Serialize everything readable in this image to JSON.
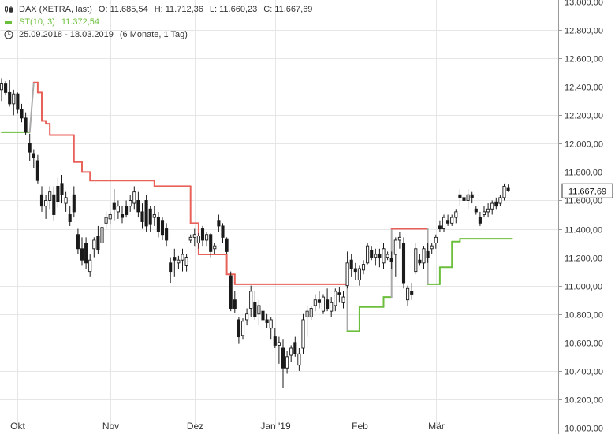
{
  "legend": {
    "instrument": "DAX (XETRA, last)",
    "open": "O: 11.685,54",
    "high": "H: 11.712,36",
    "low": "L: 11.660,23",
    "close": "C: 11.667,69",
    "indicator_label": "ST(10, 3)",
    "indicator_value": "11.372,54",
    "date_range": "25.09.2018 - 18.03.2019",
    "period": "(6 Monate, 1 Tag)"
  },
  "icons": {
    "candles": "candlestick-icon",
    "indicator": "line-swatch-icon",
    "period": "clock-icon"
  },
  "colors": {
    "candle": "#1a1a1a",
    "supertrend_up": "#6cbf3c",
    "supertrend_down": "#e8625a",
    "supertrend_switch": "#aaaaaa",
    "grid": "#e6e6e6",
    "last_price_box": "#ffffff"
  },
  "chart_data": {
    "type": "candlestick",
    "ylim": [
      10000,
      13000
    ],
    "y_ticks": [
      "13.000,00",
      "12.800,00",
      "12.600,00",
      "12.400,00",
      "12.200,00",
      "12.000,00",
      "11.800,00",
      "11.600,00",
      "11.400,00",
      "11.200,00",
      "11.000,00",
      "10.800,00",
      "10.600,00",
      "10.400,00",
      "10.200,00",
      "10.000,00"
    ],
    "y_tick_values": [
      13000,
      12800,
      12600,
      12400,
      12200,
      12000,
      11800,
      11600,
      11400,
      11200,
      11000,
      10800,
      10600,
      10400,
      10200,
      10000
    ],
    "x_ticks": [
      {
        "label": "Okt",
        "index": 4
      },
      {
        "label": "Nov",
        "index": 27
      },
      {
        "label": "Dez",
        "index": 48
      },
      {
        "label": "Jan '19",
        "index": 68
      },
      {
        "label": "Feb",
        "index": 89
      },
      {
        "label": "Mär",
        "index": 108
      }
    ],
    "last_price": 11667.69,
    "last_price_label": "11.667,69",
    "candles": [
      {
        "o": 12380,
        "h": 12460,
        "l": 12300,
        "c": 12420
      },
      {
        "o": 12420,
        "h": 12440,
        "l": 12340,
        "c": 12360
      },
      {
        "o": 12360,
        "h": 12450,
        "l": 12260,
        "c": 12280
      },
      {
        "o": 12280,
        "h": 12380,
        "l": 12200,
        "c": 12350
      },
      {
        "o": 12350,
        "h": 12360,
        "l": 12210,
        "c": 12240
      },
      {
        "o": 12240,
        "h": 12280,
        "l": 12150,
        "c": 12180
      },
      {
        "o": 12180,
        "h": 12220,
        "l": 12060,
        "c": 12080
      },
      {
        "o": 12000,
        "h": 12070,
        "l": 11880,
        "c": 11940
      },
      {
        "o": 11930,
        "h": 11960,
        "l": 11830,
        "c": 11900
      },
      {
        "o": 11880,
        "h": 11920,
        "l": 11720,
        "c": 11740
      },
      {
        "o": 11640,
        "h": 11700,
        "l": 11520,
        "c": 11560
      },
      {
        "o": 11560,
        "h": 11640,
        "l": 11470,
        "c": 11600
      },
      {
        "o": 11600,
        "h": 11700,
        "l": 11540,
        "c": 11660
      },
      {
        "o": 11640,
        "h": 11700,
        "l": 11460,
        "c": 11500
      },
      {
        "o": 11700,
        "h": 11760,
        "l": 11550,
        "c": 11590
      },
      {
        "o": 11720,
        "h": 11780,
        "l": 11580,
        "c": 11640
      },
      {
        "o": 11580,
        "h": 11660,
        "l": 11520,
        "c": 11620
      },
      {
        "o": 11500,
        "h": 11560,
        "l": 11420,
        "c": 11450
      },
      {
        "o": 11640,
        "h": 11700,
        "l": 11480,
        "c": 11520
      },
      {
        "o": 11360,
        "h": 11400,
        "l": 11220,
        "c": 11260
      },
      {
        "o": 11260,
        "h": 11340,
        "l": 11140,
        "c": 11180
      },
      {
        "o": 11300,
        "h": 11340,
        "l": 11120,
        "c": 11160
      },
      {
        "o": 11100,
        "h": 11220,
        "l": 11060,
        "c": 11180
      },
      {
        "o": 11260,
        "h": 11340,
        "l": 11200,
        "c": 11320
      },
      {
        "o": 11350,
        "h": 11420,
        "l": 11220,
        "c": 11250
      },
      {
        "o": 11300,
        "h": 11440,
        "l": 11260,
        "c": 11410
      },
      {
        "o": 11440,
        "h": 11520,
        "l": 11400,
        "c": 11480
      },
      {
        "o": 11470,
        "h": 11520,
        "l": 11430,
        "c": 11500
      },
      {
        "o": 11580,
        "h": 11680,
        "l": 11460,
        "c": 11540
      },
      {
        "o": 11520,
        "h": 11600,
        "l": 11470,
        "c": 11560
      },
      {
        "o": 11500,
        "h": 11560,
        "l": 11440,
        "c": 11480
      },
      {
        "o": 11560,
        "h": 11600,
        "l": 11480,
        "c": 11500
      },
      {
        "o": 11560,
        "h": 11640,
        "l": 11520,
        "c": 11600
      },
      {
        "o": 11580,
        "h": 11700,
        "l": 11540,
        "c": 11660
      },
      {
        "o": 11600,
        "h": 11660,
        "l": 11480,
        "c": 11520
      },
      {
        "o": 11520,
        "h": 11580,
        "l": 11400,
        "c": 11450
      },
      {
        "o": 11600,
        "h": 11640,
        "l": 11380,
        "c": 11420
      },
      {
        "o": 11540,
        "h": 11560,
        "l": 11380,
        "c": 11430
      },
      {
        "o": 11480,
        "h": 11560,
        "l": 11420,
        "c": 11500
      },
      {
        "o": 11480,
        "h": 11520,
        "l": 11340,
        "c": 11380
      },
      {
        "o": 11460,
        "h": 11480,
        "l": 11320,
        "c": 11360
      },
      {
        "o": 11400,
        "h": 11440,
        "l": 11280,
        "c": 11320
      },
      {
        "o": 11160,
        "h": 11200,
        "l": 11020,
        "c": 11100
      },
      {
        "o": 11200,
        "h": 11260,
        "l": 11060,
        "c": 11180
      },
      {
        "o": 11160,
        "h": 11210,
        "l": 11120,
        "c": 11180
      },
      {
        "o": 11180,
        "h": 11260,
        "l": 11100,
        "c": 11220
      },
      {
        "o": 11140,
        "h": 11220,
        "l": 11100,
        "c": 11200
      },
      {
        "o": 11320,
        "h": 11360,
        "l": 11300,
        "c": 11340
      },
      {
        "o": 11340,
        "h": 11400,
        "l": 11280,
        "c": 11360
      },
      {
        "o": 11300,
        "h": 11370,
        "l": 11260,
        "c": 11350
      },
      {
        "o": 11400,
        "h": 11420,
        "l": 11280,
        "c": 11320
      },
      {
        "o": 11320,
        "h": 11380,
        "l": 11280,
        "c": 11360
      },
      {
        "o": 11360,
        "h": 11370,
        "l": 11200,
        "c": 11240
      },
      {
        "o": 11260,
        "h": 11300,
        "l": 11220,
        "c": 11280
      },
      {
        "o": 11460,
        "h": 11500,
        "l": 11380,
        "c": 11420
      },
      {
        "o": 11420,
        "h": 11440,
        "l": 11300,
        "c": 11340
      },
      {
        "o": 11330,
        "h": 11340,
        "l": 11220,
        "c": 11240
      },
      {
        "o": 11070,
        "h": 11100,
        "l": 10820,
        "c": 10840
      },
      {
        "o": 10900,
        "h": 10960,
        "l": 10810,
        "c": 10840
      },
      {
        "o": 10760,
        "h": 10780,
        "l": 10590,
        "c": 10640
      },
      {
        "o": 10650,
        "h": 10770,
        "l": 10620,
        "c": 10750
      },
      {
        "o": 10760,
        "h": 10840,
        "l": 10720,
        "c": 10800
      },
      {
        "o": 10840,
        "h": 11000,
        "l": 10780,
        "c": 10960
      },
      {
        "o": 10880,
        "h": 10960,
        "l": 10760,
        "c": 10780
      },
      {
        "o": 10800,
        "h": 10900,
        "l": 10720,
        "c": 10860
      },
      {
        "o": 10820,
        "h": 10880,
        "l": 10740,
        "c": 10760
      },
      {
        "o": 10760,
        "h": 10800,
        "l": 10700,
        "c": 10740
      },
      {
        "o": 10700,
        "h": 10780,
        "l": 10620,
        "c": 10760
      },
      {
        "o": 10640,
        "h": 10700,
        "l": 10560,
        "c": 10580
      },
      {
        "o": 10580,
        "h": 10640,
        "l": 10450,
        "c": 10600
      },
      {
        "o": 10560,
        "h": 10620,
        "l": 10280,
        "c": 10420
      },
      {
        "o": 10420,
        "h": 10540,
        "l": 10380,
        "c": 10500
      },
      {
        "o": 10510,
        "h": 10580,
        "l": 10460,
        "c": 10560
      },
      {
        "o": 10600,
        "h": 10640,
        "l": 10500,
        "c": 10520
      },
      {
        "o": 10440,
        "h": 10560,
        "l": 10400,
        "c": 10520
      },
      {
        "o": 10560,
        "h": 10800,
        "l": 10520,
        "c": 10760
      },
      {
        "o": 10780,
        "h": 10860,
        "l": 10640,
        "c": 10820
      },
      {
        "o": 10780,
        "h": 10860,
        "l": 10760,
        "c": 10840
      },
      {
        "o": 10860,
        "h": 10940,
        "l": 10820,
        "c": 10900
      },
      {
        "o": 10900,
        "h": 10960,
        "l": 10840,
        "c": 10880
      },
      {
        "o": 10820,
        "h": 10940,
        "l": 10800,
        "c": 10920
      },
      {
        "o": 10900,
        "h": 10980,
        "l": 10820,
        "c": 10840
      },
      {
        "o": 10820,
        "h": 10920,
        "l": 10780,
        "c": 10880
      },
      {
        "o": 10860,
        "h": 10980,
        "l": 10820,
        "c": 10960
      },
      {
        "o": 10950,
        "h": 10990,
        "l": 10880,
        "c": 10940
      },
      {
        "o": 10880,
        "h": 10960,
        "l": 10840,
        "c": 10920
      },
      {
        "o": 11000,
        "h": 11240,
        "l": 10980,
        "c": 11160
      },
      {
        "o": 11180,
        "h": 11220,
        "l": 11060,
        "c": 11120
      },
      {
        "o": 11120,
        "h": 11160,
        "l": 11040,
        "c": 11100
      },
      {
        "o": 11040,
        "h": 11140,
        "l": 11000,
        "c": 11120
      },
      {
        "o": 11110,
        "h": 11180,
        "l": 11080,
        "c": 11150
      },
      {
        "o": 11160,
        "h": 11300,
        "l": 11150,
        "c": 11280
      },
      {
        "o": 11250,
        "h": 11280,
        "l": 11180,
        "c": 11200
      },
      {
        "o": 11200,
        "h": 11260,
        "l": 11140,
        "c": 11220
      },
      {
        "o": 11220,
        "h": 11260,
        "l": 11130,
        "c": 11200
      },
      {
        "o": 11160,
        "h": 11300,
        "l": 11120,
        "c": 11260
      },
      {
        "o": 11200,
        "h": 11240,
        "l": 11180,
        "c": 11220
      },
      {
        "o": 11190,
        "h": 11240,
        "l": 11120,
        "c": 11170
      },
      {
        "o": 11220,
        "h": 11340,
        "l": 11060,
        "c": 11320
      },
      {
        "o": 11320,
        "h": 11380,
        "l": 11260,
        "c": 11340
      },
      {
        "o": 11300,
        "h": 11340,
        "l": 10980,
        "c": 11020
      },
      {
        "o": 10900,
        "h": 11000,
        "l": 10860,
        "c": 10980
      },
      {
        "o": 10960,
        "h": 11020,
        "l": 10900,
        "c": 10940
      },
      {
        "o": 11100,
        "h": 11300,
        "l": 11080,
        "c": 11260
      },
      {
        "o": 11180,
        "h": 11220,
        "l": 11140,
        "c": 11160
      },
      {
        "o": 11160,
        "h": 11280,
        "l": 11120,
        "c": 11260
      },
      {
        "o": 11240,
        "h": 11300,
        "l": 11160,
        "c": 11200
      },
      {
        "o": 11260,
        "h": 11300,
        "l": 11220,
        "c": 11280
      },
      {
        "o": 11300,
        "h": 11360,
        "l": 11260,
        "c": 11340
      },
      {
        "o": 11420,
        "h": 11460,
        "l": 11380,
        "c": 11400
      },
      {
        "o": 11400,
        "h": 11500,
        "l": 11380,
        "c": 11480
      },
      {
        "o": 11460,
        "h": 11500,
        "l": 11420,
        "c": 11440
      },
      {
        "o": 11440,
        "h": 11500,
        "l": 11420,
        "c": 11480
      },
      {
        "o": 11480,
        "h": 11540,
        "l": 11440,
        "c": 11520
      },
      {
        "o": 11640,
        "h": 11680,
        "l": 11560,
        "c": 11620
      },
      {
        "o": 11620,
        "h": 11660,
        "l": 11580,
        "c": 11600
      },
      {
        "o": 11600,
        "h": 11680,
        "l": 11540,
        "c": 11640
      },
      {
        "o": 11640,
        "h": 11660,
        "l": 11580,
        "c": 11620
      },
      {
        "o": 11540,
        "h": 11560,
        "l": 11500,
        "c": 11520
      },
      {
        "o": 11480,
        "h": 11520,
        "l": 11420,
        "c": 11440
      },
      {
        "o": 11500,
        "h": 11560,
        "l": 11480,
        "c": 11520
      },
      {
        "o": 11520,
        "h": 11580,
        "l": 11480,
        "c": 11540
      },
      {
        "o": 11540,
        "h": 11600,
        "l": 11500,
        "c": 11580
      },
      {
        "o": 11590,
        "h": 11620,
        "l": 11540,
        "c": 11560
      },
      {
        "o": 11580,
        "h": 11640,
        "l": 11560,
        "c": 11620
      },
      {
        "o": 11620,
        "h": 11720,
        "l": 11600,
        "c": 11700
      },
      {
        "o": 11685.54,
        "h": 11712.36,
        "l": 11660.23,
        "c": 11667.69
      }
    ],
    "supertrend": [
      {
        "start": 0,
        "end": 7,
        "v": 12080,
        "dir": "up"
      },
      {
        "start": 8,
        "end": 9,
        "v": 12430,
        "dir": "down"
      },
      {
        "start": 9,
        "end": 10,
        "v": 12360,
        "dir": "down"
      },
      {
        "start": 10,
        "end": 11,
        "v": 12160,
        "dir": "down"
      },
      {
        "start": 11,
        "end": 12,
        "v": 12140,
        "dir": "down"
      },
      {
        "start": 12,
        "end": 18,
        "v": 12060,
        "dir": "down"
      },
      {
        "start": 18,
        "end": 20,
        "v": 11870,
        "dir": "down"
      },
      {
        "start": 20,
        "end": 22,
        "v": 11800,
        "dir": "down"
      },
      {
        "start": 22,
        "end": 38,
        "v": 11740,
        "dir": "down"
      },
      {
        "start": 38,
        "end": 47,
        "v": 11700,
        "dir": "down"
      },
      {
        "start": 47,
        "end": 49,
        "v": 11440,
        "dir": "down"
      },
      {
        "start": 49,
        "end": 56,
        "v": 11220,
        "dir": "down"
      },
      {
        "start": 56,
        "end": 58,
        "v": 11080,
        "dir": "down"
      },
      {
        "start": 58,
        "end": 65,
        "v": 11010,
        "dir": "down"
      },
      {
        "start": 65,
        "end": 86,
        "v": 11010,
        "dir": "down"
      },
      {
        "start": 86,
        "end": 89,
        "v": 10680,
        "dir": "up"
      },
      {
        "start": 89,
        "end": 95,
        "v": 10850,
        "dir": "up"
      },
      {
        "start": 95,
        "end": 97,
        "v": 10920,
        "dir": "up"
      },
      {
        "start": 97,
        "end": 100,
        "v": 11400,
        "dir": "down"
      },
      {
        "start": 100,
        "end": 106,
        "v": 11400,
        "dir": "down"
      },
      {
        "start": 106,
        "end": 109,
        "v": 11010,
        "dir": "up"
      },
      {
        "start": 109,
        "end": 112,
        "v": 11130,
        "dir": "up"
      },
      {
        "start": 112,
        "end": 114,
        "v": 11310,
        "dir": "up"
      },
      {
        "start": 114,
        "end": 127,
        "v": 11330,
        "dir": "up"
      }
    ]
  }
}
